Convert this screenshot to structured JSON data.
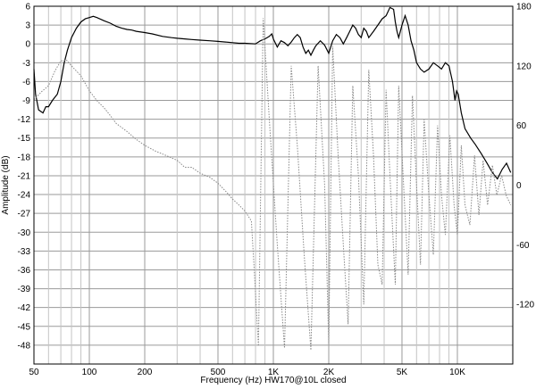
{
  "chart_data": {
    "type": "line",
    "xlabel": "Frequency (Hz) HW170@10L closed",
    "ylabel": "Amplitude (dB)",
    "x_scale": "log",
    "xlim": [
      50,
      20000
    ],
    "ylim": [
      -51,
      6
    ],
    "y2lim": [
      -180,
      180
    ],
    "grid": true,
    "x_ticks": [
      {
        "value": 50,
        "label": "50"
      },
      {
        "value": 100,
        "label": "100"
      },
      {
        "value": 200,
        "label": "200"
      },
      {
        "value": 500,
        "label": "500"
      },
      {
        "value": 1000,
        "label": "1K"
      },
      {
        "value": 2000,
        "label": "2K"
      },
      {
        "value": 5000,
        "label": "5K"
      },
      {
        "value": 10000,
        "label": "10K"
      }
    ],
    "x_minor": [
      60,
      70,
      80,
      90,
      300,
      400,
      600,
      700,
      800,
      900,
      3000,
      4000,
      6000,
      7000,
      8000,
      9000
    ],
    "y_ticks": [
      6,
      3,
      0,
      -3,
      -6,
      -9,
      -12,
      -15,
      -18,
      -21,
      -24,
      -27,
      -30,
      -33,
      -36,
      -39,
      -42,
      -45,
      -48
    ],
    "y_tick_labels": [
      "6",
      "3",
      "0",
      "-3",
      "-6",
      "-9",
      "-12",
      "-15",
      "-18",
      "-21",
      "-24",
      "-27",
      "-30",
      "-33",
      "-36",
      "-39",
      "-42",
      "-45",
      "-48"
    ],
    "y2_ticks": [
      180,
      120,
      60,
      0,
      -60,
      -120
    ],
    "y2_tick_labels": [
      "180",
      "120",
      "60",
      "0",
      "-60",
      "-120"
    ],
    "series": [
      {
        "axis": "left",
        "style": "solid",
        "color": "#000000",
        "points": [
          [
            50,
            -4
          ],
          [
            51,
            -8
          ],
          [
            53,
            -10.5
          ],
          [
            56,
            -11
          ],
          [
            58,
            -10
          ],
          [
            60,
            -10
          ],
          [
            63,
            -9
          ],
          [
            67,
            -8
          ],
          [
            70,
            -6
          ],
          [
            73,
            -3
          ],
          [
            76,
            -1
          ],
          [
            80,
            1
          ],
          [
            85,
            2.5
          ],
          [
            90,
            3.5
          ],
          [
            95,
            4
          ],
          [
            100,
            4.2
          ],
          [
            105,
            4.4
          ],
          [
            110,
            4.2
          ],
          [
            120,
            3.7
          ],
          [
            130,
            3.3
          ],
          [
            140,
            2.8
          ],
          [
            150,
            2.5
          ],
          [
            160,
            2.3
          ],
          [
            170,
            2.2
          ],
          [
            180,
            2.0
          ],
          [
            200,
            1.8
          ],
          [
            220,
            1.6
          ],
          [
            250,
            1.2
          ],
          [
            280,
            1.0
          ],
          [
            300,
            0.9
          ],
          [
            330,
            0.8
          ],
          [
            360,
            0.7
          ],
          [
            400,
            0.6
          ],
          [
            450,
            0.5
          ],
          [
            500,
            0.4
          ],
          [
            550,
            0.3
          ],
          [
            600,
            0.2
          ],
          [
            650,
            0.1
          ],
          [
            700,
            0.1
          ],
          [
            800,
            0
          ],
          [
            850,
            0.5
          ],
          [
            900,
            0.8
          ],
          [
            950,
            1.2
          ],
          [
            980,
            1.6
          ],
          [
            1000,
            0.8
          ],
          [
            1050,
            -0.5
          ],
          [
            1100,
            0.5
          ],
          [
            1150,
            0.2
          ],
          [
            1200,
            -0.3
          ],
          [
            1250,
            0.3
          ],
          [
            1300,
            1.0
          ],
          [
            1350,
            1.5
          ],
          [
            1400,
            1.0
          ],
          [
            1450,
            -0.5
          ],
          [
            1500,
            -1.5
          ],
          [
            1550,
            -1.0
          ],
          [
            1600,
            -1.8
          ],
          [
            1650,
            -1.0
          ],
          [
            1700,
            -0.3
          ],
          [
            1800,
            0.5
          ],
          [
            1900,
            -0.2
          ],
          [
            2000,
            -1.5
          ],
          [
            2050,
            -0.5
          ],
          [
            2100,
            0.5
          ],
          [
            2200,
            1.5
          ],
          [
            2300,
            1.0
          ],
          [
            2400,
            0.0
          ],
          [
            2500,
            1.0
          ],
          [
            2600,
            2.0
          ],
          [
            2700,
            3.0
          ],
          [
            2800,
            2.5
          ],
          [
            2900,
            1.5
          ],
          [
            3000,
            1.0
          ],
          [
            3100,
            2.5
          ],
          [
            3200,
            2.0
          ],
          [
            3300,
            1.0
          ],
          [
            3500,
            2.0
          ],
          [
            3700,
            3.0
          ],
          [
            3900,
            4.0
          ],
          [
            4100,
            4.5
          ],
          [
            4300,
            5.8
          ],
          [
            4500,
            5.5
          ],
          [
            4600,
            3.5
          ],
          [
            4700,
            2.0
          ],
          [
            4800,
            1.0
          ],
          [
            5000,
            3.0
          ],
          [
            5200,
            4.5
          ],
          [
            5400,
            3.0
          ],
          [
            5600,
            0.5
          ],
          [
            5800,
            -1.0
          ],
          [
            6000,
            -3.0
          ],
          [
            6300,
            -4.0
          ],
          [
            6600,
            -4.5
          ],
          [
            7000,
            -4.0
          ],
          [
            7400,
            -3.0
          ],
          [
            7800,
            -3.5
          ],
          [
            8200,
            -4.0
          ],
          [
            8600,
            -3.0
          ],
          [
            9000,
            -3.5
          ],
          [
            9400,
            -6.0
          ],
          [
            9700,
            -9.0
          ],
          [
            9900,
            -7.5
          ],
          [
            10100,
            -8.0
          ],
          [
            10500,
            -11.0
          ],
          [
            11000,
            -13.5
          ],
          [
            11800,
            -15.0
          ],
          [
            12500,
            -16.0
          ],
          [
            13500,
            -17.5
          ],
          [
            14500,
            -19.0
          ],
          [
            15500,
            -20.5
          ],
          [
            16500,
            -21.5
          ],
          [
            17500,
            -20.0
          ],
          [
            18500,
            -19.0
          ],
          [
            19500,
            -20.5
          ]
        ]
      },
      {
        "axis": "right",
        "style": "dotted",
        "color": "#888888",
        "points": [
          [
            50,
            86
          ],
          [
            55,
            94
          ],
          [
            60,
            100
          ],
          [
            65,
            115
          ],
          [
            70,
            125
          ],
          [
            75,
            126
          ],
          [
            80,
            120
          ],
          [
            90,
            110
          ],
          [
            100,
            95
          ],
          [
            110,
            85
          ],
          [
            120,
            78
          ],
          [
            130,
            70
          ],
          [
            140,
            62
          ],
          [
            160,
            54
          ],
          [
            180,
            46
          ],
          [
            200,
            40
          ],
          [
            230,
            34
          ],
          [
            260,
            30
          ],
          [
            300,
            25
          ],
          [
            330,
            18
          ],
          [
            360,
            18
          ],
          [
            400,
            12
          ],
          [
            450,
            8
          ],
          [
            500,
            2
          ],
          [
            550,
            -6
          ],
          [
            600,
            -14
          ],
          [
            650,
            -20
          ],
          [
            700,
            -26
          ],
          [
            760,
            -36
          ],
          [
            790,
            -90
          ],
          [
            830,
            -162
          ],
          [
            880,
            168
          ],
          [
            960,
            54
          ],
          [
            1050,
            -60
          ],
          [
            1150,
            -164
          ],
          [
            1250,
            120
          ],
          [
            1350,
            40
          ],
          [
            1470,
            -70
          ],
          [
            1600,
            -166
          ],
          [
            1750,
            120
          ],
          [
            1900,
            0
          ],
          [
            2000,
            -160
          ],
          [
            2100,
            140
          ],
          [
            2250,
            30
          ],
          [
            2400,
            -60
          ],
          [
            2550,
            -140
          ],
          [
            2700,
            100
          ],
          [
            2900,
            10
          ],
          [
            3100,
            -120
          ],
          [
            3300,
            116
          ],
          [
            3500,
            30
          ],
          [
            3700,
            -80
          ],
          [
            3900,
            -100
          ],
          [
            4100,
            96
          ],
          [
            4300,
            10
          ],
          [
            4600,
            -100
          ],
          [
            4800,
            100
          ],
          [
            5100,
            0
          ],
          [
            5400,
            -90
          ],
          [
            5700,
            90
          ],
          [
            6000,
            0
          ],
          [
            6300,
            -80
          ],
          [
            6600,
            66
          ],
          [
            7000,
            -10
          ],
          [
            7400,
            -70
          ],
          [
            7800,
            60
          ],
          [
            8200,
            -10
          ],
          [
            8600,
            -50
          ],
          [
            9100,
            50
          ],
          [
            9600,
            -20
          ],
          [
            10000,
            -50
          ],
          [
            10500,
            40
          ],
          [
            11000,
            -20
          ],
          [
            11700,
            -40
          ],
          [
            12400,
            30
          ],
          [
            13100,
            -30
          ],
          [
            13800,
            25
          ],
          [
            14600,
            -20
          ],
          [
            15500,
            20
          ],
          [
            16400,
            -10
          ],
          [
            17400,
            10
          ],
          [
            18400,
            -10
          ],
          [
            19500,
            -20
          ]
        ]
      }
    ]
  }
}
